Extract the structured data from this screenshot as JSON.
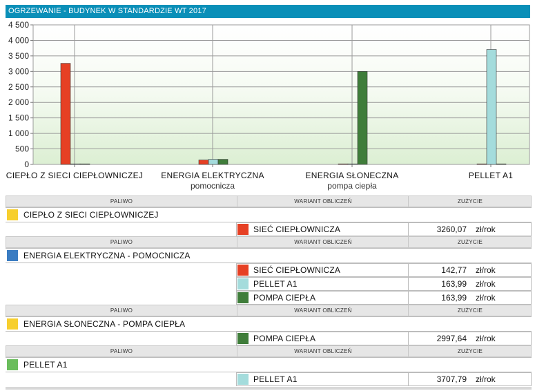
{
  "header": {
    "title": "OGRZEWANIE - BUDYNEK W STANDARDZIE WT 2017"
  },
  "colors": {
    "siec": "#e64024",
    "pellet": "#a4dcdc",
    "pompa": "#3f7d3a",
    "fuel_cieplo": "#f7cf2e",
    "fuel_energia": "#3a7cc2",
    "fuel_sloneczna": "#f7cf2e",
    "fuel_pellet": "#6abd5c",
    "header_bg": "#0a8fb8"
  },
  "chart_data": {
    "type": "bar",
    "ylim": [
      0,
      4500
    ],
    "yticks": [
      "0",
      "500",
      "1 000",
      "1 500",
      "2 000",
      "2 500",
      "3 000",
      "3 500",
      "4 000",
      "4 500"
    ],
    "ytick_values": [
      0,
      500,
      1000,
      1500,
      2000,
      2500,
      3000,
      3500,
      4000,
      4500
    ],
    "categories": [
      {
        "label": "CIEPŁO Z SIECI CIEPŁOWNICZEJ",
        "sublabel": ""
      },
      {
        "label": "ENERGIA ELEKTRYCZNA",
        "sublabel": "pomocnicza"
      },
      {
        "label": "ENERGIA SŁONECZNA",
        "sublabel": "pompa ciepła"
      },
      {
        "label": "PELLET A1",
        "sublabel": ""
      }
    ],
    "series": [
      {
        "name": "SIEĆ CIEPŁOWNICZA",
        "color_key": "siec",
        "values": [
          3260.07,
          142.77,
          0,
          0
        ]
      },
      {
        "name": "PELLET A1",
        "color_key": "pellet",
        "values": [
          0,
          163.99,
          0,
          3707.79
        ]
      },
      {
        "name": "POMPA CIEPŁA",
        "color_key": "pompa",
        "values": [
          0,
          163.99,
          2997.64,
          0
        ]
      }
    ],
    "grid": true,
    "legend": "none"
  },
  "table": {
    "headers": {
      "paliwo": "PALIWO",
      "wariant": "WARIANT OBLICZEŃ",
      "zuzycie": "ZUŻYCIE"
    },
    "groups": [
      {
        "fuel": "CIEPŁO Z SIECI CIEPŁOWNICZEJ",
        "fuel_color": "fuel_cieplo",
        "variants": [
          {
            "name": "SIEĆ CIEPŁOWNICZA",
            "color": "siec",
            "value": "3260,07",
            "unit": "zł/rok"
          }
        ]
      },
      {
        "fuel": "ENERGIA ELEKTRYCZNA - POMOCNICZA",
        "fuel_color": "fuel_energia",
        "variants": [
          {
            "name": "SIEĆ CIEPŁOWNICZA",
            "color": "siec",
            "value": "142,77",
            "unit": "zł/rok"
          },
          {
            "name": "PELLET A1",
            "color": "pellet",
            "value": "163,99",
            "unit": "zł/rok"
          },
          {
            "name": "POMPA CIEPŁA",
            "color": "pompa",
            "value": "163,99",
            "unit": "zł/rok"
          }
        ]
      },
      {
        "fuel": "ENERGIA SŁONECZNA - POMPA CIEPŁA",
        "fuel_color": "fuel_sloneczna",
        "variants": [
          {
            "name": "POMPA CIEPŁA",
            "color": "pompa",
            "value": "2997,64",
            "unit": "zł/rok"
          }
        ]
      },
      {
        "fuel": "PELLET A1",
        "fuel_color": "fuel_pellet",
        "variants": [
          {
            "name": "PELLET A1",
            "color": "pellet",
            "value": "3707,79",
            "unit": "zł/rok"
          }
        ]
      }
    ]
  }
}
